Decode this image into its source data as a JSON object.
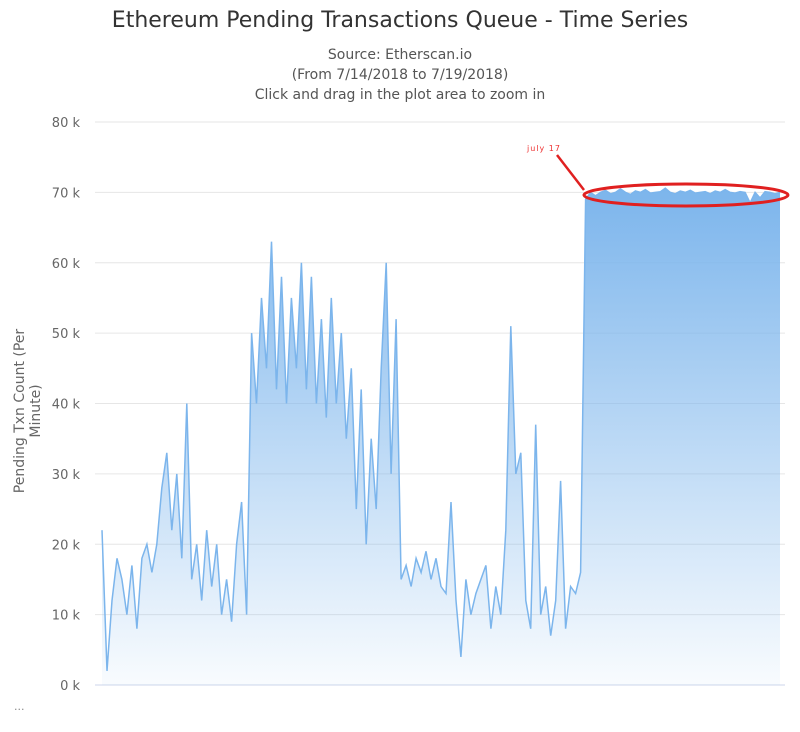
{
  "chart_data": {
    "type": "area",
    "title": "Ethereum Pending Transactions Queue - Time Series",
    "subtitles": [
      "Source: Etherscan.io",
      "(From 7/14/2018 to 7/19/2018)",
      "Click and drag in the plot area to zoom in"
    ],
    "ylabel": "Pending Txn Count (Per Minute)",
    "xlabel": "",
    "ylim": [
      0,
      80000
    ],
    "yticks": [
      "0 k",
      "10 k",
      "20 k",
      "30 k",
      "40 k",
      "50 k",
      "60 k",
      "70 k",
      "80 k"
    ],
    "grid": true,
    "color": "#7cb5ec",
    "values_k": [
      22,
      2,
      12,
      18,
      15,
      10,
      17,
      8,
      18,
      20,
      16,
      20,
      28,
      33,
      22,
      30,
      18,
      40,
      15,
      20,
      12,
      22,
      14,
      20,
      10,
      15,
      9,
      20,
      26,
      10,
      50,
      40,
      55,
      45,
      63,
      42,
      58,
      40,
      55,
      45,
      60,
      42,
      58,
      40,
      52,
      38,
      55,
      40,
      50,
      35,
      45,
      25,
      42,
      20,
      35,
      25,
      45,
      60,
      30,
      52,
      15,
      17,
      14,
      18,
      16,
      19,
      15,
      18,
      14,
      13,
      26,
      12,
      4,
      15,
      10,
      13,
      15,
      17,
      8,
      14,
      10,
      22,
      51,
      30,
      33,
      12,
      8,
      37,
      10,
      14,
      7,
      12,
      29,
      8,
      14,
      13,
      16,
      69,
      70,
      69.5,
      70,
      70.3,
      69.8,
      70,
      70.5,
      70,
      69.7,
      70.2,
      70,
      70.4,
      69.9,
      70,
      70.1,
      70.6,
      70,
      69.8,
      70.2,
      70,
      70.3,
      69.9,
      70,
      70.1,
      69.8,
      70.2,
      70,
      70.4,
      70,
      69.9,
      70.1,
      70,
      68.5,
      70,
      69.2,
      70.1,
      70,
      69.8,
      70
    ],
    "annotation": {
      "text": "july 17",
      "color": "#e02020"
    }
  },
  "menu_label": "..."
}
